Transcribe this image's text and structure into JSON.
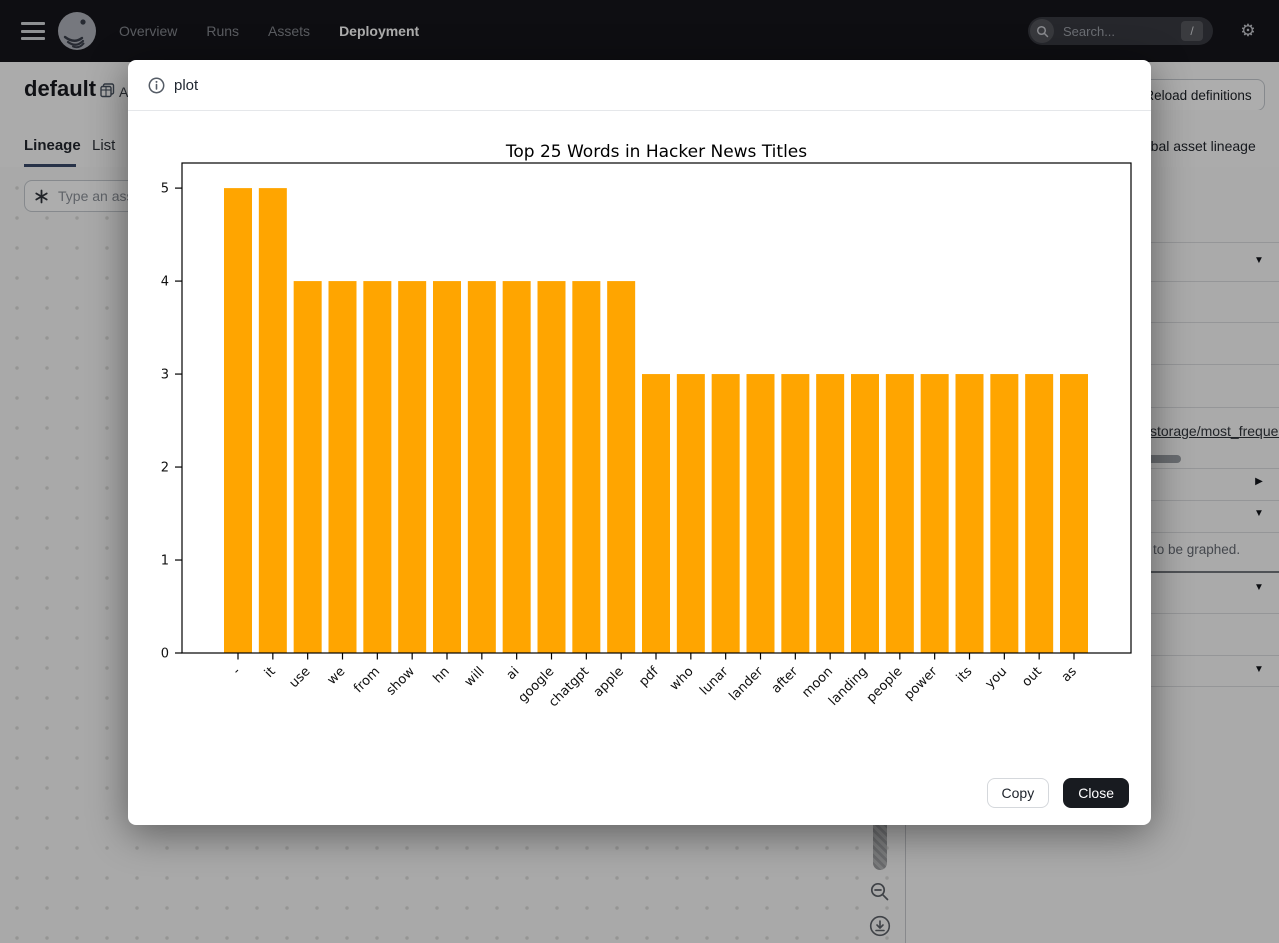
{
  "nav": {
    "items": [
      {
        "label": "Overview",
        "active": false
      },
      {
        "label": "Runs",
        "active": false
      },
      {
        "label": "Assets",
        "active": false
      },
      {
        "label": "Deployment",
        "active": true
      }
    ],
    "search": {
      "placeholder": "Search...",
      "shortcut": "/"
    }
  },
  "icons": {
    "gear": "⚙",
    "chevron_down": "▼",
    "chevron_right": "▶"
  },
  "page": {
    "title": "default",
    "location_fragment": "A",
    "tabs": [
      {
        "label": "Lineage",
        "active": true
      },
      {
        "label": "List",
        "active": false
      }
    ],
    "asset_search_placeholder": "Type an asset name…",
    "reload_button": "Reload definitions",
    "lineage_link": "View global asset lineage",
    "right_panel": {
      "metadata_link": "storage/most_frequent_words",
      "description_fragment": "to be graphed."
    }
  },
  "modal": {
    "title": "plot",
    "buttons": {
      "copy": "Copy",
      "close": "Close"
    }
  },
  "theme": {
    "nav_bg": "#16161b",
    "close_button_bg": "#181b20",
    "overlay": "rgba(0,0,0,0.32)"
  },
  "chart_data": {
    "type": "bar",
    "title": "Top 25 Words in Hacker News Titles",
    "categories": [
      "-",
      "it",
      "use",
      "we",
      "from",
      "show",
      "hn",
      "will",
      "ai",
      "google",
      "chatgpt",
      "apple",
      "pdf",
      "who",
      "lunar",
      "lander",
      "after",
      "moon",
      "landing",
      "people",
      "power",
      "its",
      "you",
      "out",
      "as"
    ],
    "values": [
      5,
      5,
      4,
      4,
      4,
      4,
      4,
      4,
      4,
      4,
      4,
      4,
      3,
      3,
      3,
      3,
      3,
      3,
      3,
      3,
      3,
      3,
      3,
      3,
      3
    ],
    "xlabel": "",
    "ylabel": "",
    "ylim": [
      0,
      5.27
    ],
    "yticks": [
      0,
      1,
      2,
      3,
      4,
      5
    ],
    "bar_color": "#FFA500",
    "grid": false,
    "x_tick_rotation": 45,
    "legend": null
  }
}
